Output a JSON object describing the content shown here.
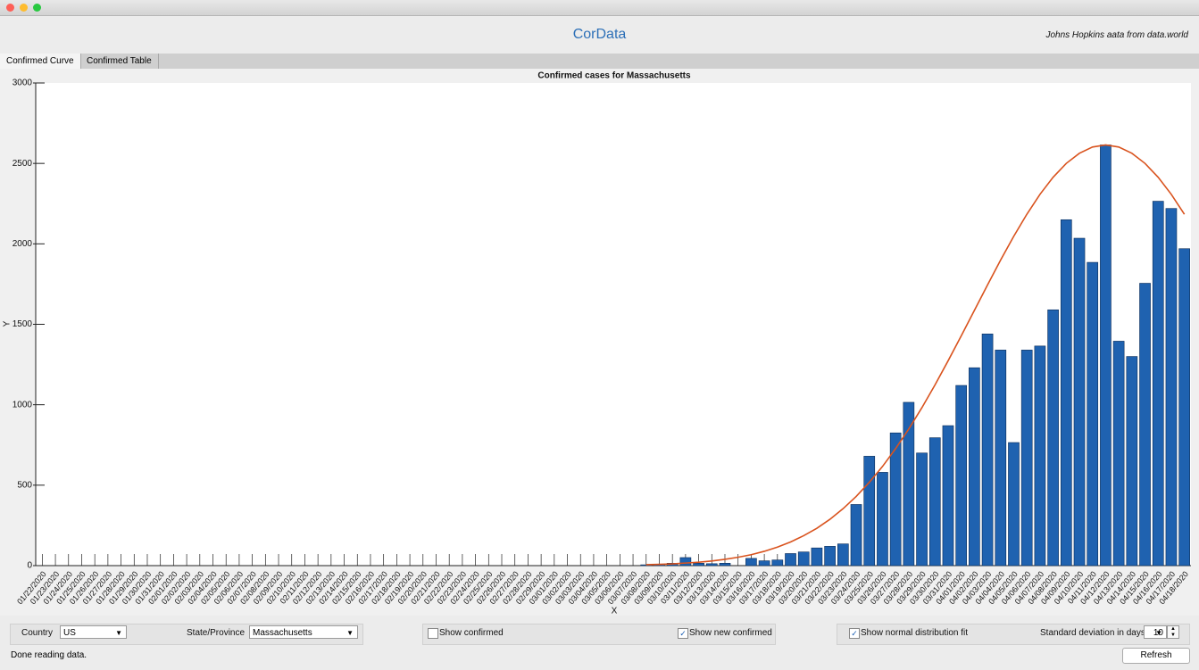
{
  "app": {
    "title": "CorData",
    "source": "Johns Hopkins aata from data.world",
    "tabs": [
      {
        "label": "Confirmed Curve",
        "active": true
      },
      {
        "label": "Confirmed Table",
        "active": false
      }
    ],
    "controls": {
      "country_label": "Country",
      "country": "US",
      "state_label": "State/Province",
      "state": "Massachusetts",
      "checkboxes": [
        {
          "label": "Show confirmed",
          "checked": false
        },
        {
          "label": "Show new confirmed",
          "checked": true
        },
        {
          "label": "Show normal distribution fit",
          "checked": true
        }
      ],
      "sd_label": "Standard deviation in days:",
      "sd": 10
    },
    "status": "Done reading data.",
    "refresh": "Refresh"
  },
  "chart_data": {
    "type": "bar",
    "title": "Confirmed cases for Massachusetts",
    "x_label": "X",
    "y_label": "Y",
    "categories": [
      "01/22/2020",
      "01/23/2020",
      "01/24/2020",
      "01/25/2020",
      "01/26/2020",
      "01/27/2020",
      "01/28/2020",
      "01/29/2020",
      "01/30/2020",
      "01/31/2020",
      "02/01/2020",
      "02/02/2020",
      "02/03/2020",
      "02/04/2020",
      "02/05/2020",
      "02/06/2020",
      "02/07/2020",
      "02/08/2020",
      "02/09/2020",
      "02/10/2020",
      "02/11/2020",
      "02/12/2020",
      "02/13/2020",
      "02/14/2020",
      "02/15/2020",
      "02/16/2020",
      "02/17/2020",
      "02/18/2020",
      "02/19/2020",
      "02/20/2020",
      "02/21/2020",
      "02/22/2020",
      "02/23/2020",
      "02/24/2020",
      "02/25/2020",
      "02/26/2020",
      "02/27/2020",
      "02/28/2020",
      "02/29/2020",
      "03/01/2020",
      "03/02/2020",
      "03/03/2020",
      "03/04/2020",
      "03/05/2020",
      "03/06/2020",
      "03/07/2020",
      "03/08/2020",
      "03/09/2020",
      "03/10/2020",
      "03/11/2020",
      "03/12/2020",
      "03/13/2020",
      "03/14/2020",
      "03/15/2020",
      "03/16/2020",
      "03/17/2020",
      "03/18/2020",
      "03/19/2020",
      "03/20/2020",
      "03/21/2020",
      "03/22/2020",
      "03/23/2020",
      "03/24/2020",
      "03/25/2020",
      "03/26/2020",
      "03/27/2020",
      "03/28/2020",
      "03/29/2020",
      "03/30/2020",
      "03/31/2020",
      "04/01/2020",
      "04/02/2020",
      "04/03/2020",
      "04/04/2020",
      "04/05/2020",
      "04/06/2020",
      "04/07/2020",
      "04/08/2020",
      "04/09/2020",
      "04/10/2020",
      "04/11/2020",
      "04/12/2020",
      "04/13/2020",
      "04/14/2020",
      "04/15/2020",
      "04/16/2020",
      "04/17/2020",
      "04/18/2020"
    ],
    "values": [
      0,
      0,
      0,
      0,
      0,
      0,
      0,
      0,
      0,
      0,
      0,
      0,
      0,
      0,
      0,
      0,
      0,
      0,
      0,
      0,
      0,
      0,
      0,
      0,
      0,
      0,
      0,
      0,
      0,
      0,
      0,
      0,
      0,
      0,
      0,
      0,
      0,
      0,
      0,
      0,
      0,
      0,
      0,
      0,
      0,
      0,
      5,
      8,
      15,
      50,
      15,
      12,
      15,
      0,
      45,
      30,
      35,
      75,
      85,
      110,
      120,
      135,
      380,
      680,
      580,
      825,
      1015,
      700,
      795,
      870,
      1120,
      1230,
      1440,
      1340,
      765,
      1340,
      1365,
      1590,
      2150,
      2035,
      1885,
      2615,
      1395,
      1300,
      1755,
      2265,
      2220,
      1970
    ],
    "color": "#1f62b0",
    "fit": {
      "color": "#d9531e",
      "values": [
        null,
        null,
        null,
        null,
        null,
        null,
        null,
        null,
        null,
        null,
        null,
        null,
        null,
        null,
        null,
        null,
        null,
        null,
        null,
        null,
        null,
        null,
        null,
        null,
        null,
        null,
        null,
        null,
        null,
        null,
        null,
        null,
        null,
        null,
        null,
        null,
        null,
        null,
        null,
        null,
        null,
        null,
        null,
        null,
        null,
        null,
        6,
        8,
        11,
        16,
        21,
        29,
        39,
        52,
        68,
        89,
        115,
        147,
        186,
        232,
        288,
        354,
        430,
        518,
        616,
        727,
        849,
        981,
        1123,
        1273,
        1428,
        1586,
        1744,
        1899,
        2047,
        2184,
        2308,
        2414,
        2500,
        2563,
        2602,
        2615,
        2602,
        2563,
        2500,
        2414,
        2308,
        2184
      ]
    },
    "ylim": [
      0,
      3000
    ],
    "yticks": [
      0,
      500,
      1000,
      1500,
      2000,
      2500,
      3000
    ],
    "grid": false
  }
}
